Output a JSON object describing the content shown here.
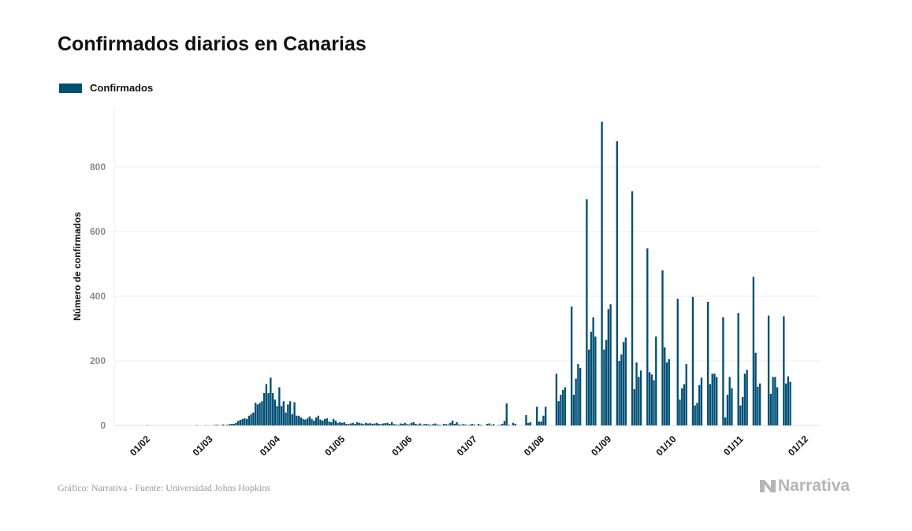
{
  "title": "Confirmados diarios en Canarias",
  "source": "Gráfico: Narrativa - Fuente: Universidad Johns Hopkins",
  "logo_text": "Narrativa",
  "colors": {
    "bar": "#004f75",
    "grid": "#ececec",
    "axis_text": "#8a8a8a"
  },
  "chart_data": {
    "type": "bar",
    "title": "Confirmados diarios en Canarias",
    "ylabel": "Número de confirmados",
    "xlabel": "",
    "legend": {
      "entries": [
        "Confirmados"
      ],
      "placement": "top-left"
    },
    "grid": "horizontal",
    "ylim": [
      0,
      990
    ],
    "yticks": [
      0,
      200,
      400,
      600,
      800
    ],
    "xticks": [
      "01/02",
      "01/03",
      "01/04",
      "01/05",
      "01/06",
      "01/07",
      "01/08",
      "01/09",
      "01/10",
      "01/11",
      "01/12"
    ],
    "series": [
      {
        "name": "Confirmados",
        "months": [
          {
            "month": "02",
            "values": [
              1,
              0,
              0,
              0,
              0,
              0,
              0,
              0,
              0,
              0,
              0,
              0,
              0,
              0,
              0,
              0,
              0,
              0,
              0,
              0,
              0,
              0,
              0,
              1,
              0,
              0,
              0,
              1,
              0
            ]
          },
          {
            "month": "03",
            "values": [
              0,
              0,
              1,
              2,
              1,
              0,
              3,
              1,
              2,
              4,
              5,
              5,
              8,
              14,
              17,
              20,
              22,
              20,
              30,
              35,
              40,
              70,
              65,
              70,
              75,
              100,
              128,
              100,
              148,
              100,
              80
            ]
          },
          {
            "month": "04",
            "values": [
              60,
              118,
              60,
              75,
              40,
              65,
              75,
              35,
              72,
              30,
              30,
              25,
              20,
              18,
              22,
              28,
              20,
              15,
              25,
              30,
              18,
              15,
              20,
              22,
              12,
              10,
              20,
              15,
              8,
              10
            ]
          },
          {
            "month": "05",
            "values": [
              8,
              10,
              5,
              4,
              6,
              8,
              5,
              10,
              8,
              6,
              4,
              8,
              6,
              7,
              5,
              6,
              8,
              5,
              4,
              6,
              7,
              8,
              5,
              10,
              4,
              3,
              2,
              6,
              5,
              8,
              4
            ]
          },
          {
            "month": "06",
            "values": [
              3,
              8,
              10,
              5,
              3,
              6,
              2,
              4,
              5,
              3,
              2,
              4,
              6,
              3,
              2,
              1,
              5,
              4,
              3,
              8,
              15,
              5,
              10,
              3,
              2,
              4,
              3,
              1,
              2,
              5
            ]
          },
          {
            "month": "07",
            "values": [
              3,
              0,
              5,
              2,
              0,
              0,
              5,
              6,
              2,
              4,
              0,
              1,
              2,
              5,
              14,
              68,
              2,
              0,
              8,
              5,
              0,
              0,
              0,
              0,
              32,
              8,
              10,
              0,
              0,
              58,
              12
            ]
          },
          {
            "month": "08",
            "values": [
              12,
              30,
              58,
              0,
              0,
              0,
              0,
              160,
              75,
              95,
              110,
              118,
              0,
              0,
              368,
              95,
              145,
              190,
              178,
              0,
              0,
              700,
              235,
              290,
              335,
              275,
              0,
              0,
              940,
              235,
              265
            ]
          },
          {
            "month": "09",
            "values": [
              360,
              375,
              0,
              0,
              880,
              200,
              220,
              258,
              272,
              0,
              0,
              725,
              112,
              195,
              150,
              170,
              0,
              0,
              548,
              165,
              158,
              140,
              275,
              0,
              0,
              480,
              242,
              195,
              205,
              0
            ]
          },
          {
            "month": "10",
            "values": [
              0,
              0,
              392,
              80,
              115,
              128,
              190,
              0,
              0,
              398,
              62,
              70,
              125,
              148,
              0,
              0,
              383,
              128,
              160,
              160,
              150,
              0,
              0,
              335,
              25,
              95,
              150,
              115,
              0,
              0,
              348
            ]
          },
          {
            "month": "11",
            "values": [
              62,
              88,
              160,
              172,
              0,
              0,
              460,
              225,
              120,
              130,
              0,
              0,
              0,
              340,
              98,
              150,
              150,
              118,
              0,
              0,
              338,
              130,
              152,
              135
            ]
          }
        ]
      }
    ]
  }
}
